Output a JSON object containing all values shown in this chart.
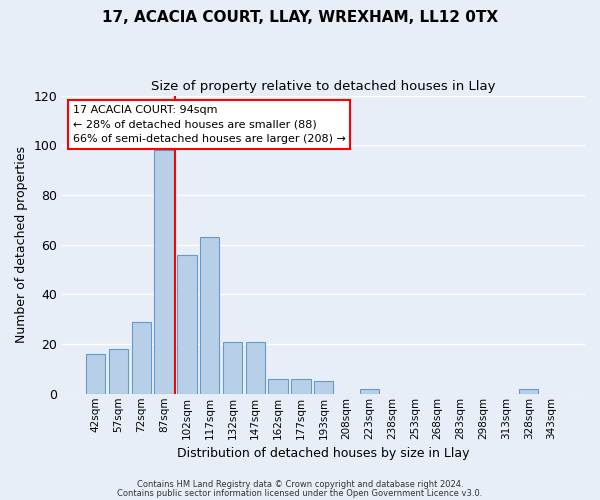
{
  "title": "17, ACACIA COURT, LLAY, WREXHAM, LL12 0TX",
  "subtitle": "Size of property relative to detached houses in Llay",
  "xlabel": "Distribution of detached houses by size in Llay",
  "ylabel": "Number of detached properties",
  "bar_labels": [
    "42sqm",
    "57sqm",
    "72sqm",
    "87sqm",
    "102sqm",
    "117sqm",
    "132sqm",
    "147sqm",
    "162sqm",
    "177sqm",
    "193sqm",
    "208sqm",
    "223sqm",
    "238sqm",
    "253sqm",
    "268sqm",
    "283sqm",
    "298sqm",
    "313sqm",
    "328sqm",
    "343sqm"
  ],
  "bar_values": [
    16,
    18,
    29,
    98,
    56,
    63,
    21,
    21,
    6,
    6,
    5,
    0,
    2,
    0,
    0,
    0,
    0,
    0,
    0,
    2,
    0
  ],
  "bar_color": "#b8cfe8",
  "bar_edge_color": "#6699cc",
  "ylim": [
    0,
    120
  ],
  "yticks": [
    0,
    20,
    40,
    60,
    80,
    100,
    120
  ],
  "annotation_title": "17 ACACIA COURT: 94sqm",
  "annotation_line1": "← 28% of detached houses are smaller (88)",
  "annotation_line2": "66% of semi-detached houses are larger (208) →",
  "red_line_x": 3.47,
  "footer1": "Contains HM Land Registry data © Crown copyright and database right 2024.",
  "footer2": "Contains public sector information licensed under the Open Government Licence v3.0.",
  "background_color": "#e8eef8",
  "grid_color": "#ffffff"
}
